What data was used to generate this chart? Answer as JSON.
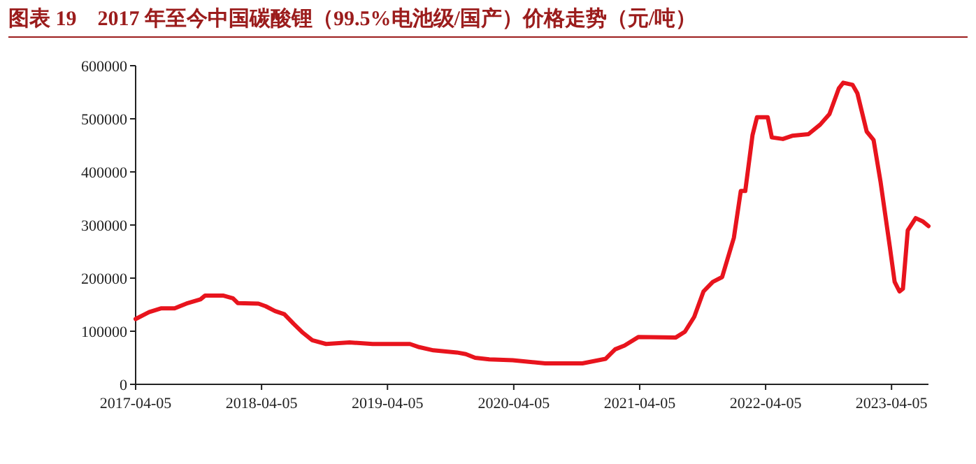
{
  "chart_data": {
    "type": "line",
    "title": "图表 19　2017 年至今中国碳酸锂（99.5%电池级/国产）价格走势（元/吨）",
    "x": [
      "2017-04-05",
      "2017-05-14",
      "2017-06-17",
      "2017-07-27",
      "2017-08-30",
      "2017-10-10",
      "2017-10-23",
      "2017-12-16",
      "2018-01-12",
      "2018-01-26",
      "2018-03-27",
      "2018-04-17",
      "2018-05-14",
      "2018-06-10",
      "2018-07-07",
      "2018-08-03",
      "2018-08-30",
      "2018-10-09",
      "2018-12-16",
      "2019-02-21",
      "2019-06-09",
      "2019-07-06",
      "2019-08-16",
      "2019-10-23",
      "2019-11-18",
      "2019-12-15",
      "2020-01-25",
      "2020-04-02",
      "2020-07-05",
      "2020-10-21",
      "2020-12-27",
      "2021-01-24",
      "2021-02-20",
      "2021-04-01",
      "2021-07-18",
      "2021-08-14",
      "2021-09-10",
      "2021-10-07",
      "2021-11-03",
      "2021-11-30",
      "2022-01-03",
      "2022-01-23",
      "2022-02-05",
      "2022-02-26",
      "2022-03-11",
      "2022-04-11",
      "2022-04-23",
      "2022-05-25",
      "2022-06-21",
      "2022-08-07",
      "2022-09-10",
      "2022-10-07",
      "2022-11-03",
      "2022-11-16",
      "2022-12-13",
      "2022-12-27",
      "2023-01-23",
      "2023-02-12",
      "2023-03-04",
      "2023-03-31",
      "2023-04-14",
      "2023-04-28",
      "2023-05-08",
      "2023-05-22",
      "2023-06-14",
      "2023-07-04",
      "2023-07-21"
    ],
    "series": [
      {
        "color": "#e8141d",
        "values": [
          123000,
          136000,
          143000,
          143000,
          152000,
          160000,
          167000,
          167000,
          162000,
          153000,
          152000,
          147000,
          138000,
          132000,
          114000,
          97000,
          83000,
          76000,
          79000,
          76000,
          76000,
          70000,
          64000,
          60000,
          57000,
          50000,
          47000,
          45500,
          39500,
          39500,
          48000,
          66000,
          73000,
          89000,
          88000,
          99000,
          127000,
          175000,
          193000,
          202000,
          276000,
          364000,
          364000,
          469000,
          503000,
          503000,
          465000,
          462000,
          468000,
          471000,
          489000,
          509000,
          557000,
          568000,
          564000,
          548000,
          476000,
          460000,
          382000,
          259000,
          193000,
          175000,
          180000,
          290000,
          313000,
          307000,
          298000
        ]
      }
    ],
    "xlim": [
      "2017-04-05",
      "2023-07-21"
    ],
    "ylim": [
      0,
      600000
    ],
    "xticks": [
      "2017-04-05",
      "2018-04-05",
      "2019-04-05",
      "2020-04-05",
      "2021-04-05",
      "2022-04-05",
      "2023-04-05"
    ],
    "yticks": [
      0,
      100000,
      200000,
      300000,
      400000,
      500000,
      600000
    ]
  }
}
